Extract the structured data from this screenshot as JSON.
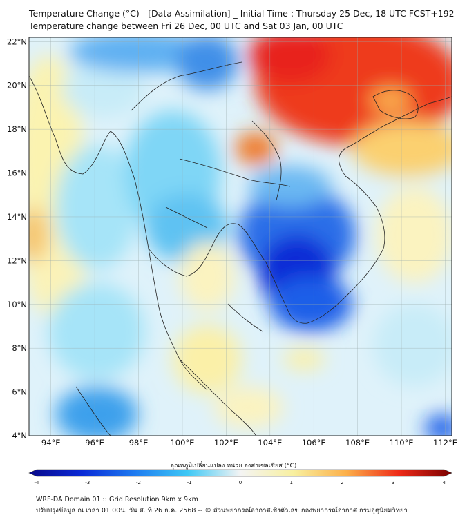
{
  "title_line1": "Temperature Change (°C) - [Data Assimilation] _ Initial Time : Thursday 25 Dec, 18 UTC FCST+192",
  "title_line2": "Temperature change between Fri 26 Dec, 00 UTC and Sat 03 Jan, 00 UTC",
  "map": {
    "lon_range": [
      93,
      112.3
    ],
    "lat_range": [
      4,
      22.2
    ],
    "lon_ticks": [
      "94°E",
      "96°E",
      "98°E",
      "100°E",
      "102°E",
      "104°E",
      "106°E",
      "108°E",
      "110°E",
      "112°E"
    ],
    "lat_ticks": [
      "22°N",
      "20°N",
      "18°N",
      "16°N",
      "14°N",
      "12°N",
      "10°N",
      "8°N",
      "6°N",
      "4°N"
    ],
    "lon_values": [
      94,
      96,
      98,
      100,
      102,
      104,
      106,
      108,
      110,
      112
    ],
    "lat_values": [
      22,
      20,
      18,
      16,
      14,
      12,
      10,
      8,
      6,
      4
    ],
    "gridlines": true
  },
  "colorbar": {
    "label": "อุณหภูมิเปลี่ยนแปลง หน่วย องศาเซลเซียส (°C)",
    "min": -4,
    "max": 4,
    "ticks": [
      "-4",
      "-3",
      "-2",
      "-1",
      "0",
      "1",
      "2",
      "3",
      "4"
    ],
    "colors": [
      "#08088a",
      "#0a2ad6",
      "#1e7bf0",
      "#3ec8f5",
      "#f4f4f4",
      "#f8f0a0",
      "#fcb04a",
      "#ee2a18",
      "#7a0000"
    ]
  },
  "footer_line1": "WRF-DA Domain 01 :: Grid Resolution 9km x 9km",
  "footer_line2": "ปรับปรุงข้อมูล ณ เวลา 01:00น. วัน ศ. ที่ 26 ธ.ค. 2568 -- © ส่วนพยากรณ์อากาศเชิงตัวเลข กองพยากรณ์อากาศ กรมอุตุนิยมวิทยา"
}
